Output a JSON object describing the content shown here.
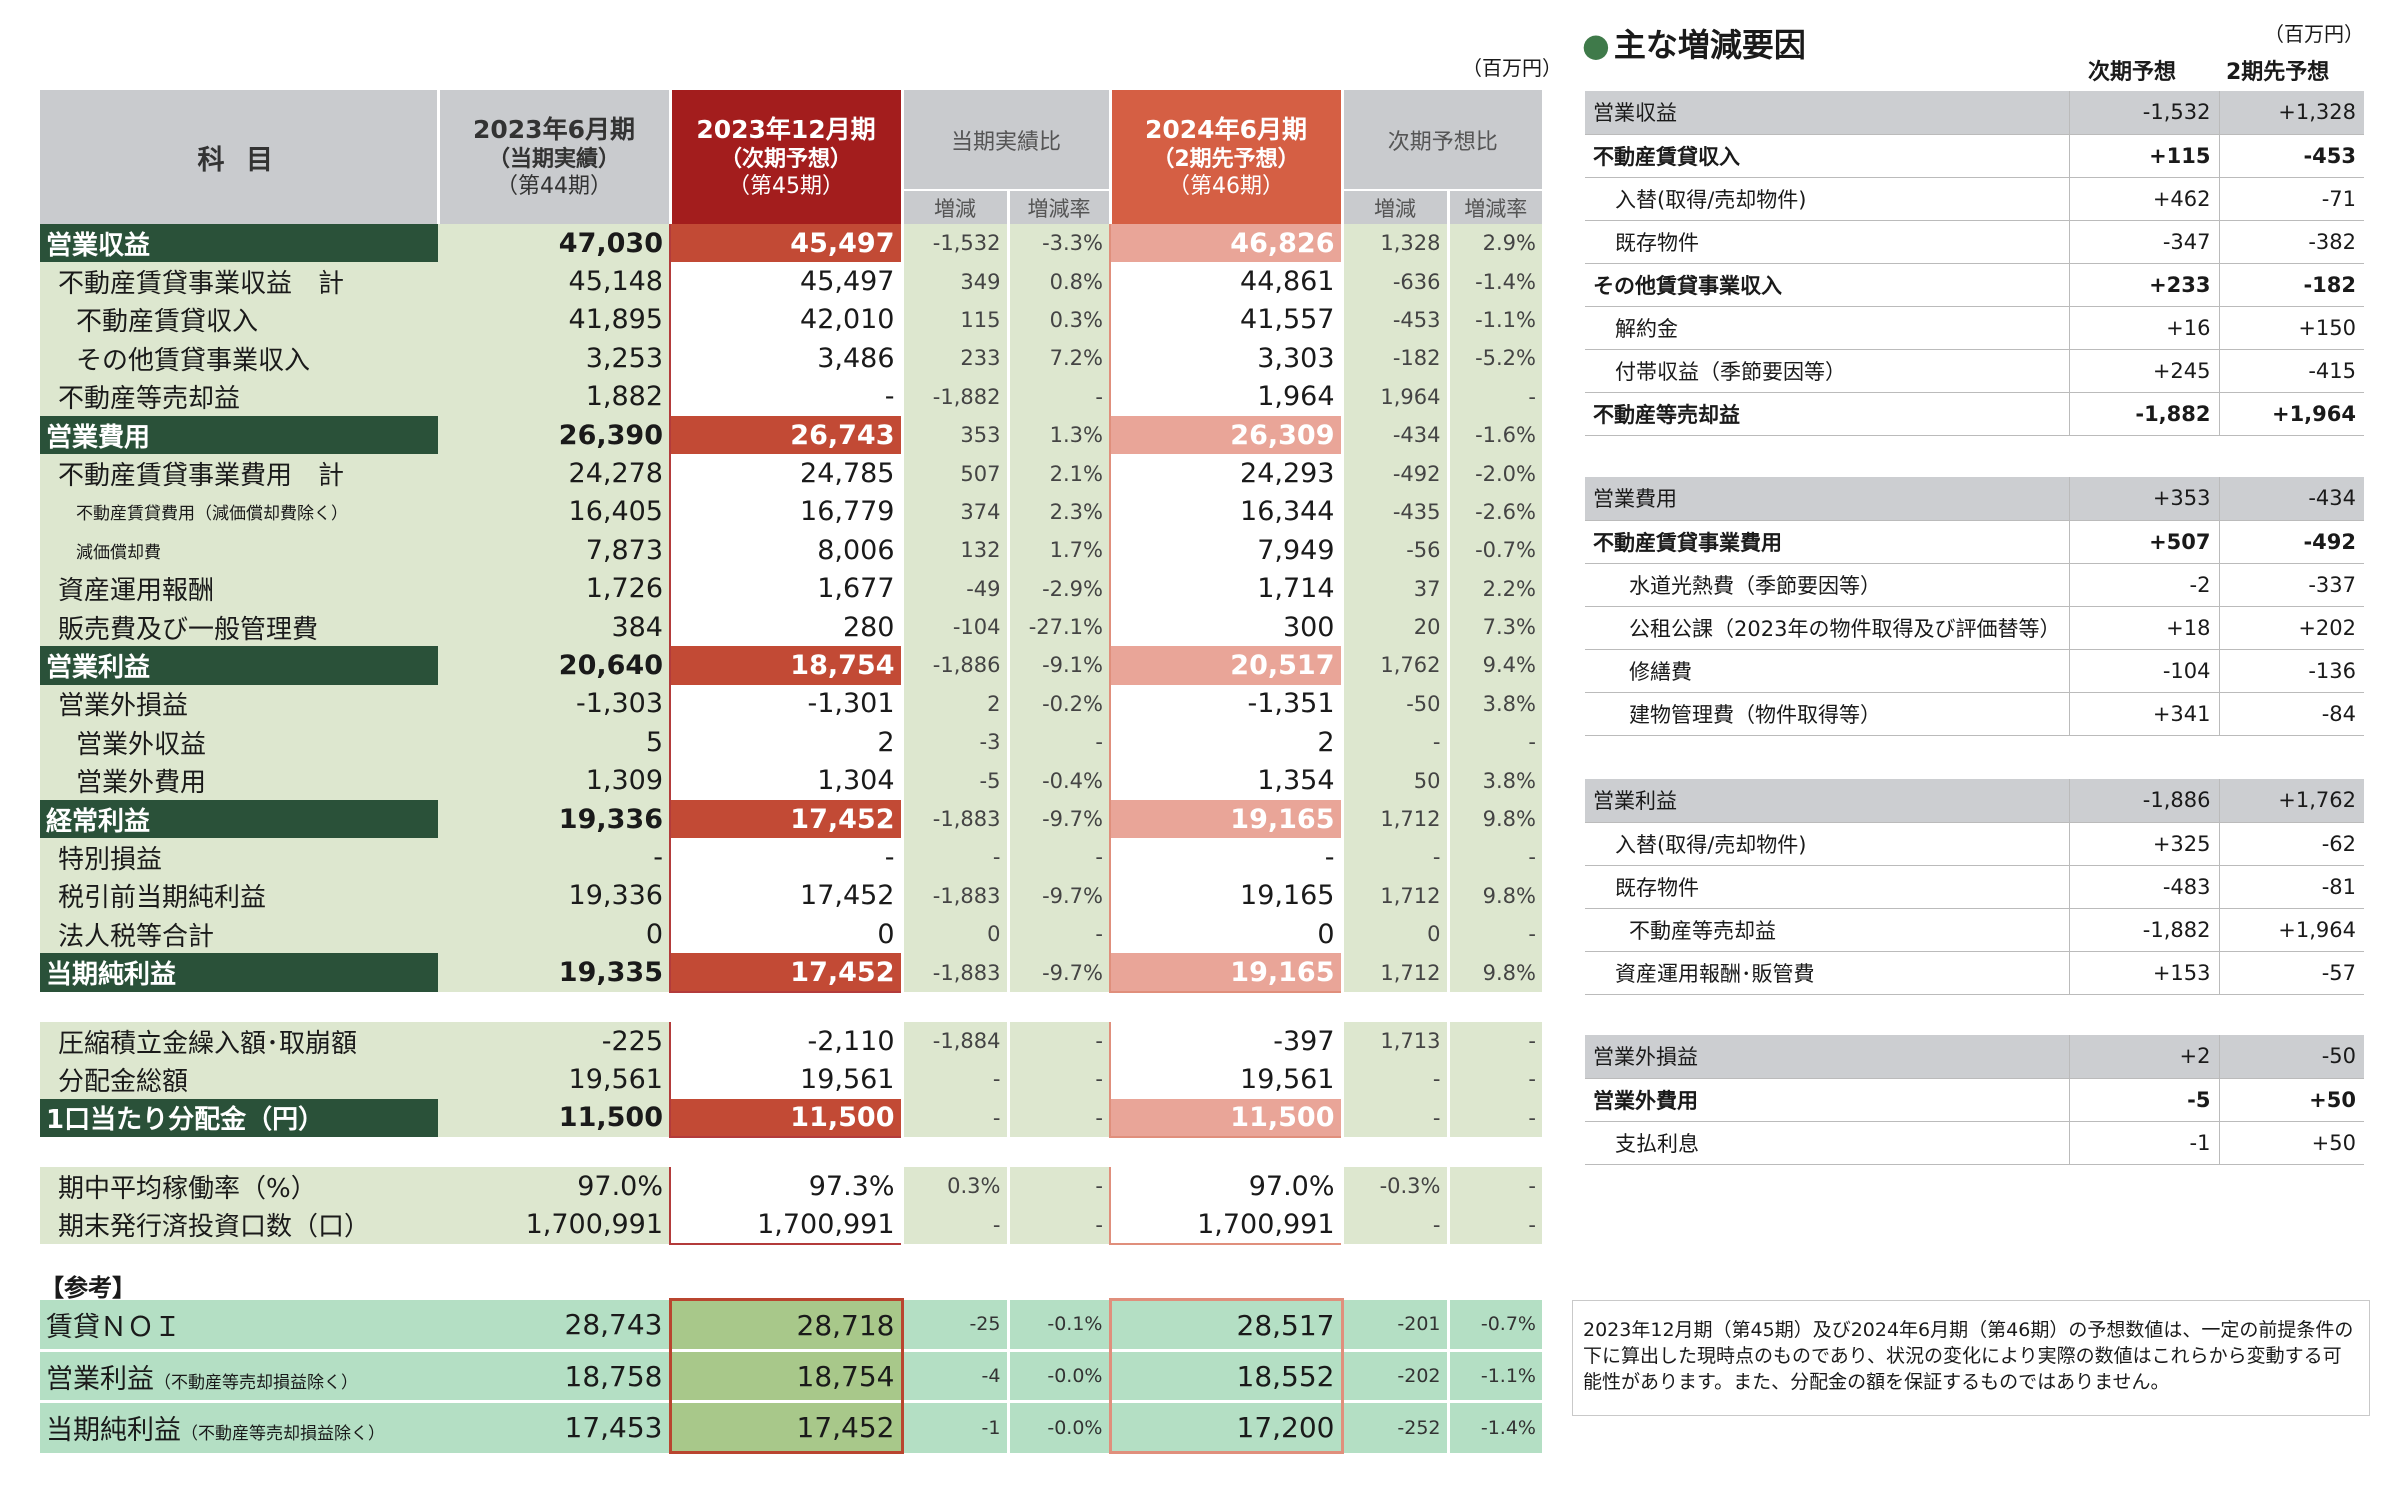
{
  "unit_label": "（百万円）",
  "main": {
    "headers": {
      "kamoku": "科 目",
      "c1": {
        "l1": "2023年6月期",
        "l2": "（当期実績）",
        "l3": "（第44期）"
      },
      "c2": {
        "l1": "2023年12月期",
        "l2": "（次期予想）",
        "l3": "（第45期）"
      },
      "g1": "当期実績比",
      "c4": {
        "l1": "2024年6月期",
        "l2": "（2期先予想）",
        "l3": "（第46期）"
      },
      "g2": "次期予想比",
      "inc": "増減",
      "rate": "増減率"
    },
    "rows": [
      {
        "label": "営業収益",
        "v1": "47,030",
        "v2": "45,497",
        "d1": "-1,532",
        "r1": "-3.3%",
        "v4": "46,826",
        "d2": "1,328",
        "r2": "2.9%"
      },
      {
        "label": "不動産賃貸事業収益　計",
        "v1": "45,148",
        "v2": "45,497",
        "d1": "349",
        "r1": "0.8%",
        "v4": "44,861",
        "d2": "-636",
        "r2": "-1.4%"
      },
      {
        "label": "不動産賃貸収入",
        "v1": "41,895",
        "v2": "42,010",
        "d1": "115",
        "r1": "0.3%",
        "v4": "41,557",
        "d2": "-453",
        "r2": "-1.1%"
      },
      {
        "label": "その他賃貸事業収入",
        "v1": "3,253",
        "v2": "3,486",
        "d1": "233",
        "r1": "7.2%",
        "v4": "3,303",
        "d2": "-182",
        "r2": "-5.2%"
      },
      {
        "label": "不動産等売却益",
        "v1": "1,882",
        "v2": "-",
        "d1": "-1,882",
        "r1": "-",
        "v4": "1,964",
        "d2": "1,964",
        "r2": "-"
      },
      {
        "label": "営業費用",
        "v1": "26,390",
        "v2": "26,743",
        "d1": "353",
        "r1": "1.3%",
        "v4": "26,309",
        "d2": "-434",
        "r2": "-1.6%"
      },
      {
        "label": "不動産賃貸事業費用　計",
        "v1": "24,278",
        "v2": "24,785",
        "d1": "507",
        "r1": "2.1%",
        "v4": "24,293",
        "d2": "-492",
        "r2": "-2.0%"
      },
      {
        "label": "不動産賃貸費用（減価償却費除く）",
        "v1": "16,405",
        "v2": "16,779",
        "d1": "374",
        "r1": "2.3%",
        "v4": "16,344",
        "d2": "-435",
        "r2": "-2.6%"
      },
      {
        "label": "減価償却費",
        "v1": "7,873",
        "v2": "8,006",
        "d1": "132",
        "r1": "1.7%",
        "v4": "7,949",
        "d2": "-56",
        "r2": "-0.7%"
      },
      {
        "label": "資産運用報酬",
        "v1": "1,726",
        "v2": "1,677",
        "d1": "-49",
        "r1": "-2.9%",
        "v4": "1,714",
        "d2": "37",
        "r2": "2.2%"
      },
      {
        "label": "販売費及び一般管理費",
        "v1": "384",
        "v2": "280",
        "d1": "-104",
        "r1": "-27.1%",
        "v4": "300",
        "d2": "20",
        "r2": "7.3%"
      },
      {
        "label": "営業利益",
        "v1": "20,640",
        "v2": "18,754",
        "d1": "-1,886",
        "r1": "-9.1%",
        "v4": "20,517",
        "d2": "1,762",
        "r2": "9.4%"
      },
      {
        "label": "営業外損益",
        "v1": "-1,303",
        "v2": "-1,301",
        "d1": "2",
        "r1": "-0.2%",
        "v4": "-1,351",
        "d2": "-50",
        "r2": "3.8%"
      },
      {
        "label": "営業外収益",
        "v1": "5",
        "v2": "2",
        "d1": "-3",
        "r1": "-",
        "v4": "2",
        "d2": "-",
        "r2": "-"
      },
      {
        "label": "営業外費用",
        "v1": "1,309",
        "v2": "1,304",
        "d1": "-5",
        "r1": "-0.4%",
        "v4": "1,354",
        "d2": "50",
        "r2": "3.8%"
      },
      {
        "label": "経常利益",
        "v1": "19,336",
        "v2": "17,452",
        "d1": "-1,883",
        "r1": "-9.7%",
        "v4": "19,165",
        "d2": "1,712",
        "r2": "9.8%"
      },
      {
        "label": "特別損益",
        "v1": "-",
        "v2": "-",
        "d1": "-",
        "r1": "-",
        "v4": "-",
        "d2": "-",
        "r2": "-"
      },
      {
        "label": "税引前当期純利益",
        "v1": "19,336",
        "v2": "17,452",
        "d1": "-1,883",
        "r1": "-9.7%",
        "v4": "19,165",
        "d2": "1,712",
        "r2": "9.8%"
      },
      {
        "label": "法人税等合計",
        "v1": "0",
        "v2": "0",
        "d1": "0",
        "r1": "-",
        "v4": "0",
        "d2": "0",
        "r2": "-"
      },
      {
        "label": "当期純利益",
        "v1": "19,335",
        "v2": "17,452",
        "d1": "-1,883",
        "r1": "-9.7%",
        "v4": "19,165",
        "d2": "1,712",
        "r2": "9.8%"
      },
      {
        "label": "圧縮積立金繰入額･取崩額",
        "v1": "-225",
        "v2": "-2,110",
        "d1": "-1,884",
        "r1": "-",
        "v4": "-397",
        "d2": "1,713",
        "r2": "-"
      },
      {
        "label": "分配金総額",
        "v1": "19,561",
        "v2": "19,561",
        "d1": "-",
        "r1": "-",
        "v4": "19,561",
        "d2": "-",
        "r2": "-"
      },
      {
        "label": "1口当たり分配金（円）",
        "v1": "11,500",
        "v2": "11,500",
        "d1": "-",
        "r1": "-",
        "v4": "11,500",
        "d2": "-",
        "r2": "-"
      },
      {
        "label": "期中平均稼働率（%）",
        "v1": "97.0%",
        "v2": "97.3%",
        "d1": "0.3%",
        "r1": "-",
        "v4": "97.0%",
        "d2": "-0.3%",
        "r2": "-"
      },
      {
        "label": "期末発行済投資口数（口）",
        "v1": "1,700,991",
        "v2": "1,700,991",
        "d1": "-",
        "r1": "-",
        "v4": "1,700,991",
        "d2": "-",
        "r2": "-"
      }
    ]
  },
  "reference": {
    "title": "【参考】",
    "rows": [
      {
        "label": "賃貸ＮＯＩ",
        "note": "",
        "v1": "28,743",
        "v2": "28,718",
        "d1": "-25",
        "r1": "-0.1%",
        "v4": "28,517",
        "d2": "-201",
        "r2": "-0.7%"
      },
      {
        "label": "営業利益",
        "note": "（不動産等売却損益除く）",
        "v1": "18,758",
        "v2": "18,754",
        "d1": "-4",
        "r1": "-0.0%",
        "v4": "18,552",
        "d2": "-202",
        "r2": "-1.1%"
      },
      {
        "label": "当期純利益",
        "note": "（不動産等売却損益除く）",
        "v1": "17,453",
        "v2": "17,452",
        "d1": "-1",
        "r1": "-0.0%",
        "v4": "17,200",
        "d2": "-252",
        "r2": "-1.4%"
      }
    ]
  },
  "right": {
    "title": "主な増減要因",
    "unit": "（百万円）",
    "col1": "次期予想",
    "col2": "2期先予想",
    "tables": [
      [
        {
          "label": "営業収益",
          "a": "-1,532",
          "b": "+1,328"
        },
        {
          "label": "不動産賃貸収入",
          "a": "+115",
          "b": "-453"
        },
        {
          "label": "入替(取得/売却物件)",
          "a": "+462",
          "b": "-71"
        },
        {
          "label": "既存物件",
          "a": "-347",
          "b": "-382"
        },
        {
          "label": "その他賃貸事業収入",
          "a": "+233",
          "b": "-182"
        },
        {
          "label": "解約金",
          "a": "+16",
          "b": "+150"
        },
        {
          "label": "付帯収益（季節要因等）",
          "a": "+245",
          "b": "-415"
        },
        {
          "label": "不動産等売却益",
          "a": "-1,882",
          "b": "+1,964"
        }
      ],
      [
        {
          "label": "営業費用",
          "a": "+353",
          "b": "-434"
        },
        {
          "label": "不動産賃貸事業費用",
          "a": "+507",
          "b": "-492"
        },
        {
          "label": "水道光熱費（季節要因等）",
          "a": "-2",
          "b": "-337"
        },
        {
          "label": "公租公課（2023年の物件取得及び評価替等）",
          "a": "+18",
          "b": "+202"
        },
        {
          "label": "修繕費",
          "a": "-104",
          "b": "-136"
        },
        {
          "label": "建物管理費（物件取得等）",
          "a": "+341",
          "b": "-84"
        }
      ],
      [
        {
          "label": "営業利益",
          "a": "-1,886",
          "b": "+1,762"
        },
        {
          "label": "入替(取得/売却物件)",
          "a": "+325",
          "b": "-62"
        },
        {
          "label": "既存物件",
          "a": "-483",
          "b": "-81"
        },
        {
          "label": "不動産等売却益",
          "a": "-1,882",
          "b": "+1,964"
        },
        {
          "label": "資産運用報酬･販管費",
          "a": "+153",
          "b": "-57"
        }
      ],
      [
        {
          "label": "営業外損益",
          "a": "+2",
          "b": "-50"
        },
        {
          "label": "営業外費用",
          "a": "-5",
          "b": "+50"
        },
        {
          "label": "支払利息",
          "a": "-1",
          "b": "+50"
        }
      ]
    ]
  },
  "note": "2023年12月期（第45期）及び2024年6月期（第46期）の予想数値は、一定の前提条件の下に算出した現時点のものであり、状況の変化により実際の数値はこれらから変動する可能性があります。また、分配金の額を保証するものではありません。"
}
